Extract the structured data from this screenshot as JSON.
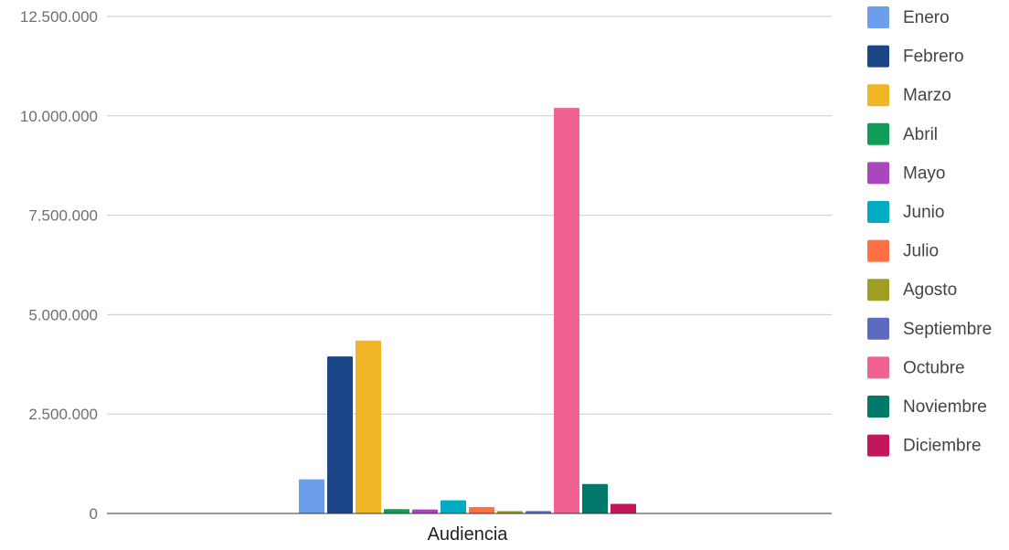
{
  "chart_data": {
    "type": "bar",
    "categories": [
      "Audiencia"
    ],
    "series": [
      {
        "name": "Enero",
        "values": [
          860000
        ],
        "color": "#6d9eeb"
      },
      {
        "name": "Febrero",
        "values": [
          3950000
        ],
        "color": "#1c4587"
      },
      {
        "name": "Marzo",
        "values": [
          4350000
        ],
        "color": "#f1b625"
      },
      {
        "name": "Abril",
        "values": [
          110000
        ],
        "color": "#0f9d58"
      },
      {
        "name": "Mayo",
        "values": [
          100000
        ],
        "color": "#ab47bc"
      },
      {
        "name": "Junio",
        "values": [
          330000
        ],
        "color": "#00acc1"
      },
      {
        "name": "Julio",
        "values": [
          160000
        ],
        "color": "#ff7043"
      },
      {
        "name": "Agosto",
        "values": [
          60000
        ],
        "color": "#9e9d24"
      },
      {
        "name": "Septiembre",
        "values": [
          60000
        ],
        "color": "#5c6bc0"
      },
      {
        "name": "Octubre",
        "values": [
          10200000
        ],
        "color": "#f06292"
      },
      {
        "name": "Noviembre",
        "values": [
          740000
        ],
        "color": "#00796b"
      },
      {
        "name": "Diciembre",
        "values": [
          240000
        ],
        "color": "#c2185b"
      }
    ],
    "yticks": [
      "0",
      "2.500.000",
      "5.000.000",
      "7.500.000",
      "10.000.000",
      "12.500.000"
    ],
    "ylim": [
      0,
      12500000
    ],
    "xlabel": "Audiencia",
    "grid": true,
    "legend_position": "right"
  }
}
